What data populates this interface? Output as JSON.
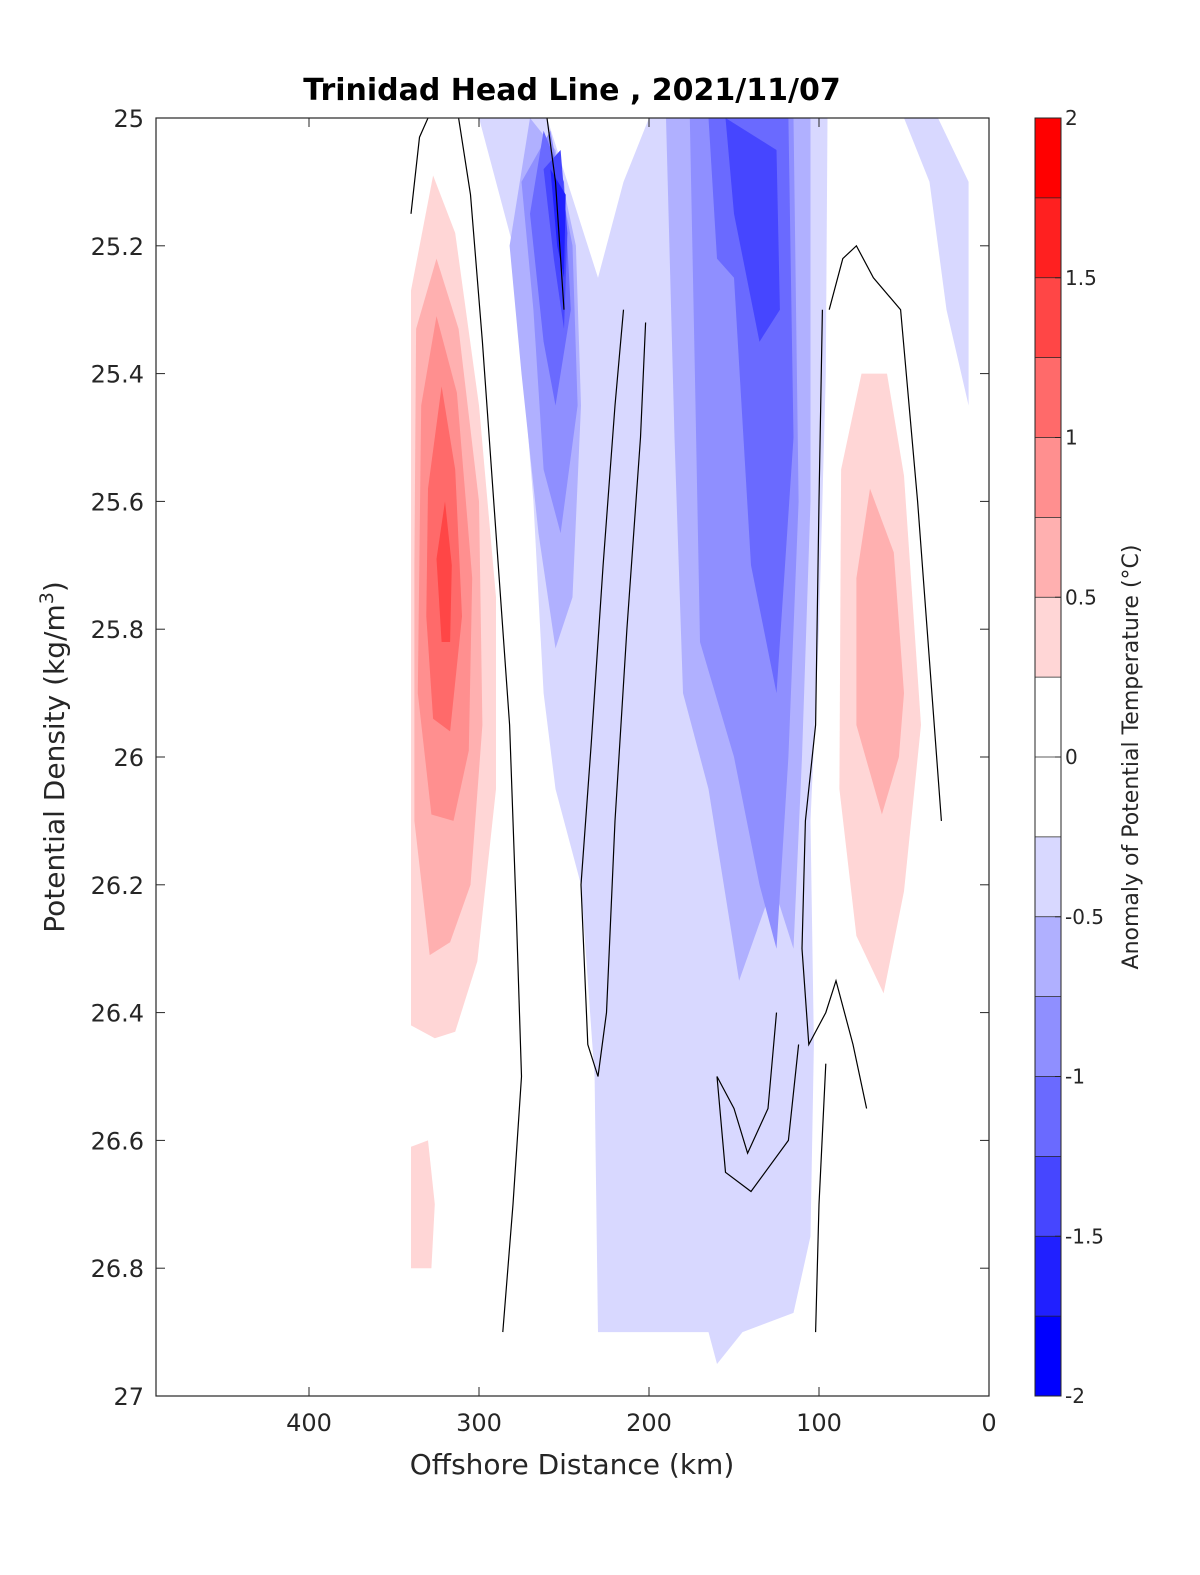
{
  "chart_data": {
    "type": "filled-contour",
    "title": "Trinidad Head Line , 2021/11/07",
    "xlabel": "Offshore Distance (km)",
    "ylabel_text": "Potential Density (kg/m",
    "ylabel_sup": "3",
    "ylabel_close": ")",
    "xlim": [
      490,
      0
    ],
    "ylim": [
      25,
      27
    ],
    "y_reversed": true,
    "x_ticks": [
      400,
      300,
      200,
      100,
      0
    ],
    "x_tick_labels": [
      "400",
      "300",
      "200",
      "100",
      "0"
    ],
    "y_ticks": [
      25,
      25.2,
      25.4,
      25.6,
      25.8,
      26,
      26.2,
      26.4,
      26.6,
      26.8,
      27
    ],
    "y_tick_labels": [
      "25",
      "25.2",
      "25.4",
      "25.6",
      "25.8",
      "26",
      "26.2",
      "26.4",
      "26.6",
      "26.8",
      "27"
    ],
    "colorbar": {
      "label": "Anomaly of Potential Temperature (°C)",
      "limits": [
        -2,
        2
      ],
      "step": 0.25,
      "tick_values": [
        2,
        1.5,
        1,
        0.5,
        0,
        -0.5,
        -1,
        -1.5,
        -2
      ],
      "tick_labels": [
        "2",
        "1.5",
        "1",
        "0.5",
        "0",
        "-0.5",
        "-1",
        "-1.5",
        "-2"
      ],
      "level_colors": [
        "#0000ff",
        "#2020ff",
        "#4646ff",
        "#6a6aff",
        "#8f8fff",
        "#b0b0ff",
        "#d8d8ff",
        "#ffffff",
        "#ffffff",
        "#ffd6d6",
        "#ffb0b0",
        "#ff8f8f",
        "#ff6a6a",
        "#ff4646",
        "#ff2020",
        "#ff0000"
      ]
    },
    "anomaly_field": {
      "description": "approximate filled-contour regions, values in degC, shape points in (km, kg/m3)",
      "regions": [
        {
          "value": 0.375,
          "points": [
            [
              340,
              25.27
            ],
            [
              327,
              25.09
            ],
            [
              314,
              25.18
            ],
            [
              300,
              25.45
            ],
            [
              290,
              25.75
            ],
            [
              290,
              26.05
            ],
            [
              301,
              26.32
            ],
            [
              314,
              26.43
            ],
            [
              326,
              26.44
            ],
            [
              340,
              26.42
            ],
            [
              340,
              25.8
            ]
          ]
        },
        {
          "value": 0.625,
          "points": [
            [
              337,
              25.33
            ],
            [
              325,
              25.22
            ],
            [
              312,
              25.33
            ],
            [
              300,
              25.6
            ],
            [
              298,
              25.95
            ],
            [
              305,
              26.2
            ],
            [
              317,
              26.29
            ],
            [
              329,
              26.31
            ],
            [
              338,
              26.1
            ],
            [
              338,
              25.7
            ]
          ]
        },
        {
          "value": 0.875,
          "points": [
            [
              334,
              25.45
            ],
            [
              325,
              25.31
            ],
            [
              313,
              25.43
            ],
            [
              304,
              25.72
            ],
            [
              306,
              25.99
            ],
            [
              315,
              26.1
            ],
            [
              328,
              26.09
            ],
            [
              336,
              25.9
            ]
          ]
        },
        {
          "value": 1.125,
          "points": [
            [
              330,
              25.58
            ],
            [
              322,
              25.42
            ],
            [
              314,
              25.55
            ],
            [
              310,
              25.78
            ],
            [
              317,
              25.96
            ],
            [
              327,
              25.94
            ],
            [
              331,
              25.78
            ]
          ]
        },
        {
          "value": 1.375,
          "points": [
            [
              325,
              25.69
            ],
            [
              320,
              25.6
            ],
            [
              316,
              25.7
            ],
            [
              317,
              25.82
            ],
            [
              322,
              25.82
            ]
          ]
        },
        {
          "value": 0.375,
          "points": [
            [
              340,
              26.61
            ],
            [
              330,
              26.6
            ],
            [
              326,
              26.7
            ],
            [
              328,
              26.8
            ],
            [
              340,
              26.8
            ]
          ]
        },
        {
          "value": 0.375,
          "points": [
            [
              87,
              25.55
            ],
            [
              75,
              25.4
            ],
            [
              60,
              25.4
            ],
            [
              50,
              25.56
            ],
            [
              40,
              25.95
            ],
            [
              50,
              26.21
            ],
            [
              62,
              26.37
            ],
            [
              78,
              26.28
            ],
            [
              88,
              26.05
            ]
          ]
        },
        {
          "value": 0.625,
          "points": [
            [
              78,
              25.72
            ],
            [
              70,
              25.58
            ],
            [
              56,
              25.68
            ],
            [
              50,
              25.9
            ],
            [
              53,
              26.0
            ],
            [
              63,
              26.09
            ],
            [
              78,
              25.95
            ]
          ]
        },
        {
          "value": -0.375,
          "points": [
            [
              300,
              25
            ],
            [
              280,
              25.2
            ],
            [
              268,
              25.6
            ],
            [
              262,
              25.9
            ],
            [
              255,
              26.05
            ],
            [
              240,
              26.2
            ],
            [
              232,
              26.5
            ],
            [
              230,
              26.9
            ],
            [
              165,
              26.9
            ],
            [
              160,
              26.95
            ],
            [
              145,
              26.9
            ],
            [
              115,
              26.87
            ],
            [
              105,
              26.75
            ],
            [
              103,
              26.45
            ],
            [
              105,
              26.1
            ],
            [
              100,
              25.8
            ],
            [
              96,
              25.4
            ],
            [
              95,
              25.0
            ],
            [
              200,
              25.0
            ],
            [
              215,
              25.1
            ],
            [
              230,
              25.25
            ],
            [
              260,
              25.0
            ]
          ]
        },
        {
          "value": -0.375,
          "points": [
            [
              50,
              25.0
            ],
            [
              35,
              25.1
            ],
            [
              25,
              25.3
            ],
            [
              12,
              25.45
            ],
            [
              12,
              25.1
            ],
            [
              30,
              25.0
            ]
          ]
        },
        {
          "value": -0.625,
          "points": [
            [
              282,
              25.2
            ],
            [
              275,
              25.4
            ],
            [
              265,
              25.65
            ],
            [
              255,
              25.83
            ],
            [
              245,
              25.75
            ],
            [
              240,
              25.45
            ],
            [
              243,
              25.2
            ],
            [
              255,
              25.05
            ],
            [
              270,
              25.0
            ]
          ]
        },
        {
          "value": -0.625,
          "points": [
            [
              190,
              25.0
            ],
            [
              185,
              25.5
            ],
            [
              180,
              25.9
            ],
            [
              165,
              26.05
            ],
            [
              147,
              26.35
            ],
            [
              127,
              26.2
            ],
            [
              115,
              26.3
            ],
            [
              110,
              26.0
            ],
            [
              105,
              25.6
            ],
            [
              105,
              25.0
            ]
          ]
        },
        {
          "value": -0.875,
          "points": [
            [
              275,
              25.1
            ],
            [
              268,
              25.3
            ],
            [
              262,
              25.55
            ],
            [
              252,
              25.65
            ],
            [
              242,
              25.45
            ],
            [
              245,
              25.2
            ],
            [
              258,
              25.02
            ]
          ]
        },
        {
          "value": -0.875,
          "points": [
            [
              176,
              25.0
            ],
            [
              173,
              25.4
            ],
            [
              170,
              25.82
            ],
            [
              150,
              26.0
            ],
            [
              135,
              26.2
            ],
            [
              125,
              26.3
            ],
            [
              118,
              26.0
            ],
            [
              112,
              25.6
            ],
            [
              115,
              25.0
            ]
          ]
        },
        {
          "value": -1.125,
          "points": [
            [
              270,
              25.15
            ],
            [
              262,
              25.35
            ],
            [
              255,
              25.45
            ],
            [
              246,
              25.3
            ],
            [
              250,
              25.1
            ],
            [
              262,
              25.02
            ]
          ]
        },
        {
          "value": -1.125,
          "points": [
            [
              165,
              25.0
            ],
            [
              160,
              25.22
            ],
            [
              150,
              25.25
            ],
            [
              140,
              25.7
            ],
            [
              125,
              25.9
            ],
            [
              115,
              25.5
            ],
            [
              118,
              25.0
            ]
          ]
        },
        {
          "value": -1.375,
          "points": [
            [
              262,
              25.08
            ],
            [
              256,
              25.22
            ],
            [
              250,
              25.33
            ],
            [
              248,
              25.18
            ],
            [
              252,
              25.05
            ]
          ]
        },
        {
          "value": -1.375,
          "points": [
            [
              155,
              25.0
            ],
            [
              150,
              25.15
            ],
            [
              135,
              25.35
            ],
            [
              123,
              25.3
            ],
            [
              125,
              25.05
            ]
          ]
        },
        {
          "value": -1.625,
          "points": [
            [
              258,
              25.08
            ],
            [
              254,
              25.2
            ],
            [
              250,
              25.25
            ],
            [
              249,
              25.12
            ]
          ]
        }
      ],
      "zero_contour_lines": [
        [
          [
            340,
            25.15
          ],
          [
            335,
            25.03
          ],
          [
            330,
            25.0
          ]
        ],
        [
          [
            312,
            25.0
          ],
          [
            305,
            25.12
          ],
          [
            298,
            25.35
          ],
          [
            290,
            25.65
          ],
          [
            282,
            25.95
          ],
          [
            278,
            26.25
          ],
          [
            275,
            26.5
          ],
          [
            280,
            26.7
          ],
          [
            286,
            26.9
          ]
        ],
        [
          [
            260,
            25.0
          ],
          [
            255,
            25.1
          ],
          [
            250,
            25.3
          ]
        ],
        [
          [
            215,
            25.3
          ],
          [
            220,
            25.45
          ],
          [
            227,
            25.7
          ],
          [
            234,
            25.98
          ],
          [
            240,
            26.2
          ],
          [
            236,
            26.45
          ],
          [
            230,
            26.5
          ],
          [
            225,
            26.4
          ],
          [
            220,
            26.1
          ],
          [
            213,
            25.8
          ],
          [
            205,
            25.5
          ],
          [
            202,
            25.32
          ]
        ],
        [
          [
            94,
            25.3
          ],
          [
            86,
            25.22
          ],
          [
            78,
            25.2
          ],
          [
            68,
            25.25
          ],
          [
            52,
            25.3
          ],
          [
            42,
            25.6
          ],
          [
            35,
            25.85
          ],
          [
            28,
            26.1
          ]
        ],
        [
          [
            98,
            25.3
          ],
          [
            100,
            25.6
          ],
          [
            102,
            25.95
          ],
          [
            108,
            26.1
          ],
          [
            110,
            26.3
          ],
          [
            106,
            26.45
          ],
          [
            96,
            26.4
          ],
          [
            90,
            26.35
          ],
          [
            80,
            26.45
          ],
          [
            72,
            26.55
          ]
        ],
        [
          [
            125,
            26.4
          ],
          [
            130,
            26.55
          ],
          [
            142,
            26.62
          ],
          [
            150,
            26.55
          ],
          [
            160,
            26.5
          ],
          [
            155,
            26.65
          ],
          [
            140,
            26.68
          ],
          [
            118,
            26.6
          ],
          [
            112,
            26.45
          ]
        ],
        [
          [
            96,
            26.48
          ],
          [
            100,
            26.7
          ],
          [
            102,
            26.9
          ]
        ]
      ]
    }
  }
}
